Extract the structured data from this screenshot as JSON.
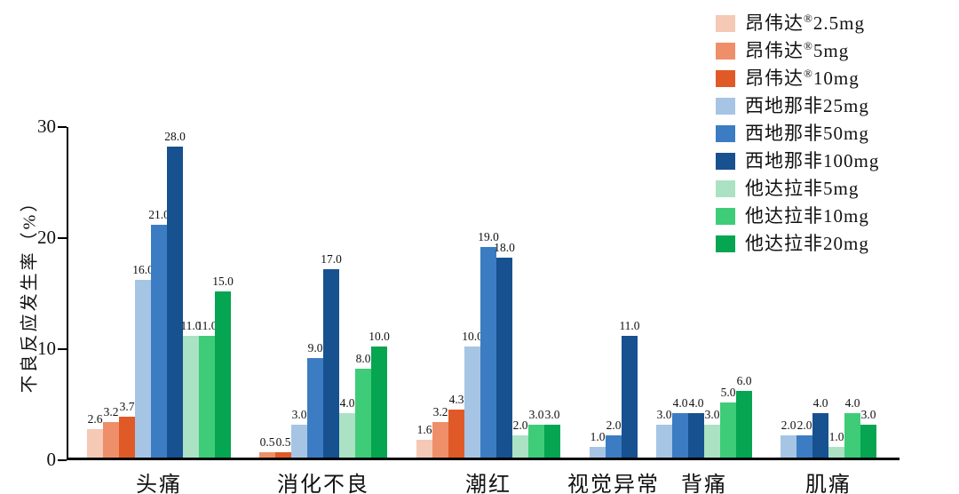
{
  "chart_data": {
    "type": "bar",
    "title": "",
    "ylabel": "不良反应发生率（%）",
    "xlabel": "",
    "ylim": [
      0,
      30
    ],
    "yticks": [
      0,
      10,
      20,
      30
    ],
    "grid": false,
    "legend_position": "top-right",
    "bar_value_labels": true,
    "value_label_decimals": 1,
    "categories": [
      "头痛",
      "消化不良",
      "潮红",
      "视觉异常",
      "背痛",
      "肌痛"
    ],
    "series": [
      {
        "name": "昂伟达®2.5mg",
        "color": "#f5c9b6",
        "values": [
          2.6,
          null,
          1.6,
          null,
          null,
          null
        ]
      },
      {
        "name": "昂伟达®5mg",
        "color": "#ef8f6a",
        "values": [
          3.2,
          0.5,
          3.2,
          null,
          null,
          null
        ]
      },
      {
        "name": "昂伟达®10mg",
        "color": "#e05a28",
        "values": [
          3.7,
          0.5,
          4.3,
          null,
          null,
          null
        ]
      },
      {
        "name": "西地那非25mg",
        "color": "#a6c5e4",
        "values": [
          16.0,
          3.0,
          10.0,
          1.0,
          3.0,
          2.0
        ]
      },
      {
        "name": "西地那非50mg",
        "color": "#3c7cc2",
        "values": [
          21.0,
          9.0,
          19.0,
          2.0,
          4.0,
          2.0
        ]
      },
      {
        "name": "西地那非100mg",
        "color": "#17518f",
        "values": [
          28.0,
          17.0,
          18.0,
          11.0,
          4.0,
          4.0
        ]
      },
      {
        "name": "他达拉非5mg",
        "color": "#abe2c3",
        "values": [
          11.0,
          4.0,
          2.0,
          null,
          3.0,
          1.0
        ]
      },
      {
        "name": "他达拉非10mg",
        "color": "#3ecc79",
        "values": [
          11.0,
          8.0,
          3.0,
          null,
          5.0,
          4.0
        ]
      },
      {
        "name": "他达拉非20mg",
        "color": "#06a551",
        "values": [
          15.0,
          10.0,
          3.0,
          null,
          6.0,
          3.0
        ]
      }
    ]
  }
}
